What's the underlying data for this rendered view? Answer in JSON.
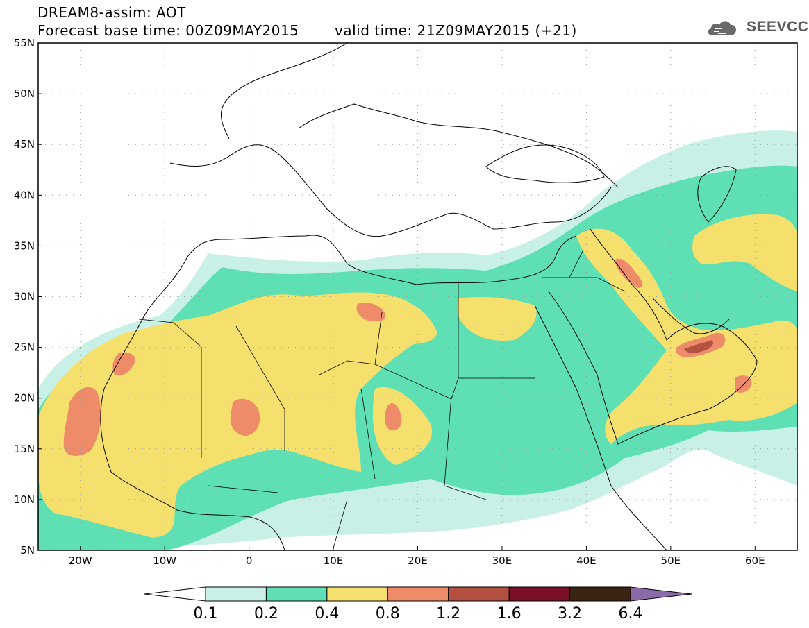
{
  "title": {
    "line1": "DREAM8-assim: AOT",
    "base_time": "Forecast base time: 00Z09MAY2015",
    "valid_time": "valid time: 21Z09MAY2015 (+21)"
  },
  "logo": {
    "text": "SEEVCCC",
    "icon": "cloud-logo-icon"
  },
  "axes": {
    "lat_labels": [
      "55N",
      "50N",
      "45N",
      "40N",
      "35N",
      "30N",
      "25N",
      "20N",
      "15N",
      "10N",
      "5N"
    ],
    "lon_labels": [
      "20W",
      "10W",
      "0",
      "10E",
      "20E",
      "30E",
      "40E",
      "50E",
      "60E"
    ],
    "lat_range": [
      5,
      55
    ],
    "lon_range": [
      -25,
      65
    ],
    "grid": "dotted"
  },
  "colorbar": {
    "labels": [
      "0.1",
      "0.2",
      "0.4",
      "0.8",
      "1.2",
      "1.6",
      "3.2",
      "6.4"
    ],
    "colors": [
      "#ffffff",
      "#c8f0e6",
      "#5ee0b4",
      "#f5e06e",
      "#ee8c6a",
      "#b45040",
      "#7a0f28",
      "#3c2414",
      "#8a6aa8"
    ]
  },
  "levels": {
    "band1": "#c8f0e6",
    "band2": "#5ee0b4",
    "band3": "#f5e06e",
    "band4": "#ee8c6a",
    "band5": "#b45040"
  }
}
